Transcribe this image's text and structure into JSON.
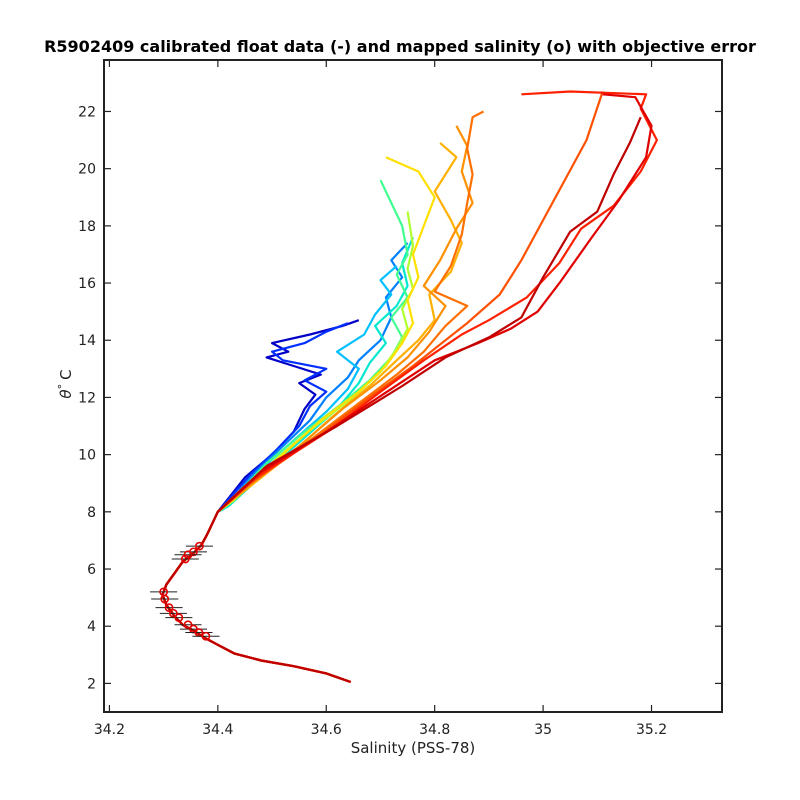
{
  "chart_data": {
    "type": "line",
    "title": "R5902409 calibrated float data (-) and mapped salinity (o) with objective error",
    "xlabel": "Salinity (PSS-78)",
    "ylabel_symbol": "θ",
    "ylabel_degree": "°",
    "ylabel_unit": "C",
    "xlim": [
      34.19,
      35.33
    ],
    "ylim": [
      1.0,
      23.8
    ],
    "xticks": [
      34.2,
      34.4,
      34.6,
      34.8,
      35.0,
      35.2
    ],
    "xtick_labels": [
      "34.2",
      "34.4",
      "34.6",
      "34.8",
      "35",
      "35.2"
    ],
    "yticks": [
      2,
      4,
      6,
      8,
      10,
      12,
      14,
      16,
      18,
      20,
      22
    ],
    "ytick_labels": [
      "2",
      "4",
      "6",
      "8",
      "10",
      "12",
      "14",
      "16",
      "18",
      "20",
      "22"
    ],
    "grid": false,
    "common_deep_profile": [
      [
        34.645,
        2.05
      ],
      [
        34.6,
        2.35
      ],
      [
        34.54,
        2.6
      ],
      [
        34.48,
        2.8
      ],
      [
        34.43,
        3.05
      ],
      [
        34.4,
        3.35
      ],
      [
        34.375,
        3.6
      ],
      [
        34.355,
        3.85
      ],
      [
        34.335,
        4.05
      ],
      [
        34.32,
        4.35
      ],
      [
        34.305,
        4.75
      ],
      [
        34.298,
        5.1
      ],
      [
        34.305,
        5.45
      ],
      [
        34.32,
        5.85
      ],
      [
        34.335,
        6.25
      ],
      [
        34.355,
        6.55
      ],
      [
        34.37,
        6.85
      ],
      [
        34.38,
        7.2
      ],
      [
        34.39,
        7.6
      ],
      [
        34.4,
        8.0
      ]
    ],
    "series": [
      {
        "color": "#0000c8",
        "values": [
          [
            34.4,
            8.0
          ],
          [
            34.45,
            9.2
          ],
          [
            34.5,
            10.0
          ],
          [
            34.54,
            10.8
          ],
          [
            34.56,
            11.6
          ],
          [
            34.58,
            12.1
          ],
          [
            34.55,
            12.5
          ],
          [
            34.59,
            12.8
          ],
          [
            34.54,
            13.1
          ],
          [
            34.49,
            13.4
          ],
          [
            34.53,
            13.6
          ],
          [
            34.5,
            13.9
          ],
          [
            34.57,
            14.2
          ],
          [
            34.63,
            14.5
          ],
          [
            34.66,
            14.7
          ]
        ]
      },
      {
        "color": "#0030ff",
        "values": [
          [
            34.4,
            8.0
          ],
          [
            34.46,
            9.3
          ],
          [
            34.51,
            10.2
          ],
          [
            34.55,
            11.0
          ],
          [
            34.57,
            11.7
          ],
          [
            34.6,
            12.2
          ],
          [
            34.56,
            12.6
          ],
          [
            34.6,
            13.0
          ],
          [
            34.52,
            13.3
          ],
          [
            34.5,
            13.6
          ],
          [
            34.56,
            13.9
          ],
          [
            34.6,
            14.3
          ],
          [
            34.64,
            14.6
          ]
        ]
      },
      {
        "color": "#0080ff",
        "values": [
          [
            34.41,
            8.1
          ],
          [
            34.47,
            9.4
          ],
          [
            34.52,
            10.3
          ],
          [
            34.57,
            11.2
          ],
          [
            34.6,
            12.0
          ],
          [
            34.64,
            12.7
          ],
          [
            34.66,
            13.3
          ],
          [
            34.7,
            14.0
          ],
          [
            34.72,
            14.8
          ],
          [
            34.71,
            15.5
          ],
          [
            34.74,
            16.2
          ],
          [
            34.72,
            16.8
          ],
          [
            34.75,
            17.4
          ]
        ]
      },
      {
        "color": "#00c0ff",
        "values": [
          [
            34.41,
            8.1
          ],
          [
            34.48,
            9.5
          ],
          [
            34.54,
            10.5
          ],
          [
            34.6,
            11.5
          ],
          [
            34.64,
            12.3
          ],
          [
            34.66,
            13.0
          ],
          [
            34.62,
            13.6
          ],
          [
            34.67,
            14.2
          ],
          [
            34.69,
            14.9
          ],
          [
            34.72,
            15.6
          ],
          [
            34.7,
            16.1
          ],
          [
            34.73,
            16.6
          ]
        ]
      },
      {
        "color": "#00e8d0",
        "values": [
          [
            34.42,
            8.2
          ],
          [
            34.5,
            9.6
          ],
          [
            34.56,
            10.6
          ],
          [
            34.62,
            11.6
          ],
          [
            34.66,
            12.5
          ],
          [
            34.68,
            13.2
          ],
          [
            34.71,
            13.9
          ],
          [
            34.69,
            14.5
          ],
          [
            34.73,
            15.2
          ],
          [
            34.75,
            15.9
          ],
          [
            34.74,
            16.7
          ],
          [
            34.76,
            17.6
          ]
        ]
      },
      {
        "color": "#40ff90",
        "values": [
          [
            34.42,
            8.3
          ],
          [
            34.49,
            9.7
          ],
          [
            34.56,
            10.8
          ],
          [
            34.63,
            11.8
          ],
          [
            34.68,
            12.6
          ],
          [
            34.72,
            13.4
          ],
          [
            34.74,
            14.1
          ],
          [
            34.72,
            14.8
          ],
          [
            34.75,
            15.5
          ],
          [
            34.73,
            16.3
          ],
          [
            34.75,
            17.0
          ],
          [
            34.74,
            18.0
          ],
          [
            34.7,
            19.6
          ]
        ]
      },
      {
        "color": "#b0ff30",
        "values": [
          [
            34.43,
            8.4
          ],
          [
            34.51,
            9.9
          ],
          [
            34.58,
            11.0
          ],
          [
            34.65,
            12.0
          ],
          [
            34.7,
            12.9
          ],
          [
            34.73,
            13.7
          ],
          [
            34.75,
            14.4
          ],
          [
            34.74,
            15.1
          ],
          [
            34.76,
            15.8
          ],
          [
            34.75,
            16.5
          ],
          [
            34.76,
            17.3
          ],
          [
            34.75,
            18.5
          ]
        ]
      },
      {
        "color": "#ffe000",
        "values": [
          [
            34.43,
            8.5
          ],
          [
            34.52,
            10.0
          ],
          [
            34.59,
            11.2
          ],
          [
            34.66,
            12.2
          ],
          [
            34.71,
            13.1
          ],
          [
            34.74,
            13.9
          ],
          [
            34.76,
            14.6
          ],
          [
            34.75,
            15.4
          ],
          [
            34.77,
            16.2
          ],
          [
            34.76,
            17.0
          ],
          [
            34.78,
            18.0
          ],
          [
            34.8,
            19.0
          ],
          [
            34.77,
            19.9
          ],
          [
            34.71,
            20.4
          ]
        ]
      },
      {
        "color": "#ffb000",
        "values": [
          [
            34.44,
            8.6
          ],
          [
            34.54,
            10.1
          ],
          [
            34.61,
            11.3
          ],
          [
            34.68,
            12.4
          ],
          [
            34.73,
            13.3
          ],
          [
            34.77,
            14.0
          ],
          [
            34.8,
            14.7
          ],
          [
            34.79,
            15.6
          ],
          [
            34.83,
            16.4
          ],
          [
            34.85,
            17.4
          ],
          [
            34.83,
            18.2
          ],
          [
            34.8,
            19.2
          ],
          [
            34.84,
            20.4
          ],
          [
            34.81,
            20.9
          ]
        ]
      },
      {
        "color": "#ff9000",
        "values": [
          [
            34.45,
            8.8
          ],
          [
            34.55,
            10.3
          ],
          [
            34.63,
            11.6
          ],
          [
            34.7,
            12.6
          ],
          [
            34.75,
            13.4
          ],
          [
            34.79,
            14.3
          ],
          [
            34.82,
            15.2
          ],
          [
            34.78,
            15.9
          ],
          [
            34.81,
            16.8
          ],
          [
            34.84,
            17.9
          ],
          [
            34.87,
            18.8
          ],
          [
            34.85,
            19.9
          ],
          [
            34.86,
            20.8
          ],
          [
            34.84,
            21.5
          ]
        ]
      },
      {
        "color": "#ff7000",
        "values": [
          [
            34.45,
            8.9
          ],
          [
            34.57,
            10.5
          ],
          [
            34.66,
            11.8
          ],
          [
            34.73,
            12.8
          ],
          [
            34.78,
            13.6
          ],
          [
            34.82,
            14.5
          ],
          [
            34.86,
            15.2
          ],
          [
            34.8,
            15.7
          ],
          [
            34.83,
            16.6
          ],
          [
            34.85,
            17.7
          ],
          [
            34.86,
            18.8
          ],
          [
            34.87,
            19.8
          ],
          [
            34.86,
            20.7
          ],
          [
            34.87,
            21.8
          ],
          [
            34.89,
            22.0
          ]
        ]
      },
      {
        "color": "#ff5000",
        "values": [
          [
            34.46,
            9.0
          ],
          [
            34.59,
            10.7
          ],
          [
            34.68,
            12.0
          ],
          [
            34.76,
            13.1
          ],
          [
            34.82,
            14.0
          ],
          [
            34.86,
            14.6
          ],
          [
            34.92,
            15.6
          ],
          [
            34.96,
            16.8
          ],
          [
            35.0,
            18.2
          ],
          [
            35.04,
            19.6
          ],
          [
            35.08,
            21.0
          ],
          [
            35.11,
            22.7
          ]
        ]
      },
      {
        "color": "#ff2000",
        "values": [
          [
            34.47,
            9.2
          ],
          [
            34.61,
            10.9
          ],
          [
            34.7,
            12.2
          ],
          [
            34.78,
            13.3
          ],
          [
            34.85,
            14.2
          ],
          [
            34.9,
            14.7
          ],
          [
            34.97,
            15.5
          ],
          [
            35.03,
            16.7
          ],
          [
            35.07,
            17.9
          ],
          [
            35.13,
            18.7
          ],
          [
            35.18,
            19.9
          ],
          [
            35.21,
            21.0
          ],
          [
            35.18,
            22.1
          ],
          [
            35.19,
            22.6
          ],
          [
            35.05,
            22.7
          ],
          [
            34.96,
            22.6
          ]
        ]
      },
      {
        "color": "#e00000",
        "values": [
          [
            34.48,
            9.4
          ],
          [
            34.6,
            10.8
          ],
          [
            34.72,
            12.3
          ],
          [
            34.8,
            13.3
          ],
          [
            34.88,
            13.9
          ],
          [
            34.94,
            14.4
          ],
          [
            34.99,
            15.0
          ],
          [
            35.03,
            16.0
          ],
          [
            35.09,
            17.6
          ],
          [
            35.14,
            18.9
          ],
          [
            35.19,
            20.4
          ],
          [
            35.2,
            21.5
          ],
          [
            35.17,
            22.5
          ],
          [
            35.11,
            22.6
          ]
        ]
      },
      {
        "color": "#c00000",
        "values": [
          [
            34.49,
            9.6
          ],
          [
            34.62,
            11.0
          ],
          [
            34.74,
            12.4
          ],
          [
            34.82,
            13.4
          ],
          [
            34.9,
            14.1
          ],
          [
            34.96,
            14.8
          ],
          [
            35.0,
            16.2
          ],
          [
            35.05,
            17.8
          ],
          [
            35.1,
            18.5
          ],
          [
            35.13,
            19.8
          ],
          [
            35.16,
            20.9
          ],
          [
            35.18,
            21.8
          ]
        ]
      }
    ],
    "mapped_points": [
      {
        "s": 34.366,
        "t": 6.8
      },
      {
        "s": 34.355,
        "t": 6.6
      },
      {
        "s": 34.345,
        "t": 6.5
      },
      {
        "s": 34.34,
        "t": 6.35
      },
      {
        "s": 34.3,
        "t": 5.2
      },
      {
        "s": 34.302,
        "t": 4.95
      },
      {
        "s": 34.31,
        "t": 4.65
      },
      {
        "s": 34.318,
        "t": 4.45
      },
      {
        "s": 34.328,
        "t": 4.3
      },
      {
        "s": 34.345,
        "t": 4.05
      },
      {
        "s": 34.355,
        "t": 3.9
      },
      {
        "s": 34.365,
        "t": 3.78
      },
      {
        "s": 34.378,
        "t": 3.65
      }
    ],
    "mapped_error": 0.025,
    "marker_color": "#e00000"
  }
}
